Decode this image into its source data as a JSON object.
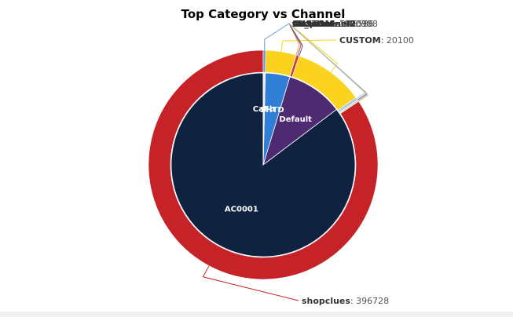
{
  "chart_data": {
    "type": "pie",
    "title": "Top Category vs Channel",
    "inner_series": {
      "categories": [
        {
          "name": "AC0001",
          "value": 396728,
          "color": "#0f2240"
        },
        {
          "name": "Default",
          "value": 46536,
          "color": "#4e2a72"
        },
        {
          "name": "SHTD",
          "value": 20100,
          "color": "#2f7fd6"
        },
        {
          "name": "CaFb",
          "value": 1700,
          "color": "#e7e7e7"
        }
      ]
    },
    "outer_series": {
      "slices": [
        {
          "name": "shopclues",
          "value": 396728,
          "color": "#c62328"
        },
        {
          "name": "testchannel2",
          "value": 108,
          "color": "#b7c6a3"
        },
        {
          "name": "CUSTOM",
          "value": 1010,
          "color": "#d4cf8a"
        },
        {
          "name": "testchannel2",
          "value": 9,
          "color": "#8c6fbf"
        },
        {
          "name": "99_Label",
          "value": 90,
          "color": "#3c3c3c"
        },
        {
          "name": "CUSTOM",
          "value": 1990,
          "color": "#a8c9e8"
        },
        {
          "name": "shopclues",
          "value": 46536,
          "color": "#fbd21e"
        },
        {
          "name": "testchannel2",
          "value": 35,
          "color": "#4a5e8c"
        },
        {
          "name": "CUSTOM",
          "value": 1980,
          "color": "#d43b3b"
        },
        {
          "name": "CUSTOM",
          "value": 100,
          "color": "#c9a878"
        },
        {
          "name": "CUSTOM",
          "value": 20100,
          "color": "#fbd21e"
        },
        {
          "name": "CUSTOM",
          "value": 1700,
          "color": "#6b9ad6"
        }
      ]
    }
  }
}
